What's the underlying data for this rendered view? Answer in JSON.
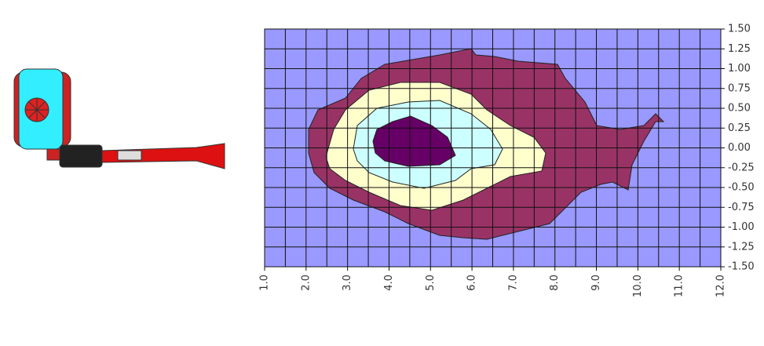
{
  "chart_data": {
    "type": "contour",
    "xlim": [
      1,
      12
    ],
    "ylim": [
      -1.5,
      1.5
    ],
    "xticks": [
      {
        "value": 1,
        "label": "1.0"
      },
      {
        "value": 2,
        "label": "2.0"
      },
      {
        "value": 3,
        "label": "3.0"
      },
      {
        "value": 4,
        "label": "4.0"
      },
      {
        "value": 5,
        "label": "5.0"
      },
      {
        "value": 6,
        "label": "6.0"
      },
      {
        "value": 7,
        "label": "7.0"
      },
      {
        "value": 8,
        "label": "8.0"
      },
      {
        "value": 9,
        "label": "9.0"
      },
      {
        "value": 10,
        "label": "10.0"
      },
      {
        "value": 11,
        "label": "11.0"
      },
      {
        "value": 12,
        "label": "12.0"
      }
    ],
    "yticks": [
      {
        "value": 1.5,
        "label": "1.50"
      },
      {
        "value": 1.25,
        "label": "1.25"
      },
      {
        "value": 1,
        "label": "1.00"
      },
      {
        "value": 0.75,
        "label": "0.75"
      },
      {
        "value": 0.5,
        "label": "0.50"
      },
      {
        "value": 0.25,
        "label": "0.25"
      },
      {
        "value": 0,
        "label": "0.00"
      },
      {
        "value": -0.25,
        "label": "-0.25"
      },
      {
        "value": -0.5,
        "label": "-0.50"
      },
      {
        "value": -0.75,
        "label": "-0.75"
      },
      {
        "value": -1,
        "label": "-1.00"
      },
      {
        "value": -1.25,
        "label": "-1.25"
      },
      {
        "value": -1.5,
        "label": "-1.50"
      }
    ],
    "grid": true
  }
}
